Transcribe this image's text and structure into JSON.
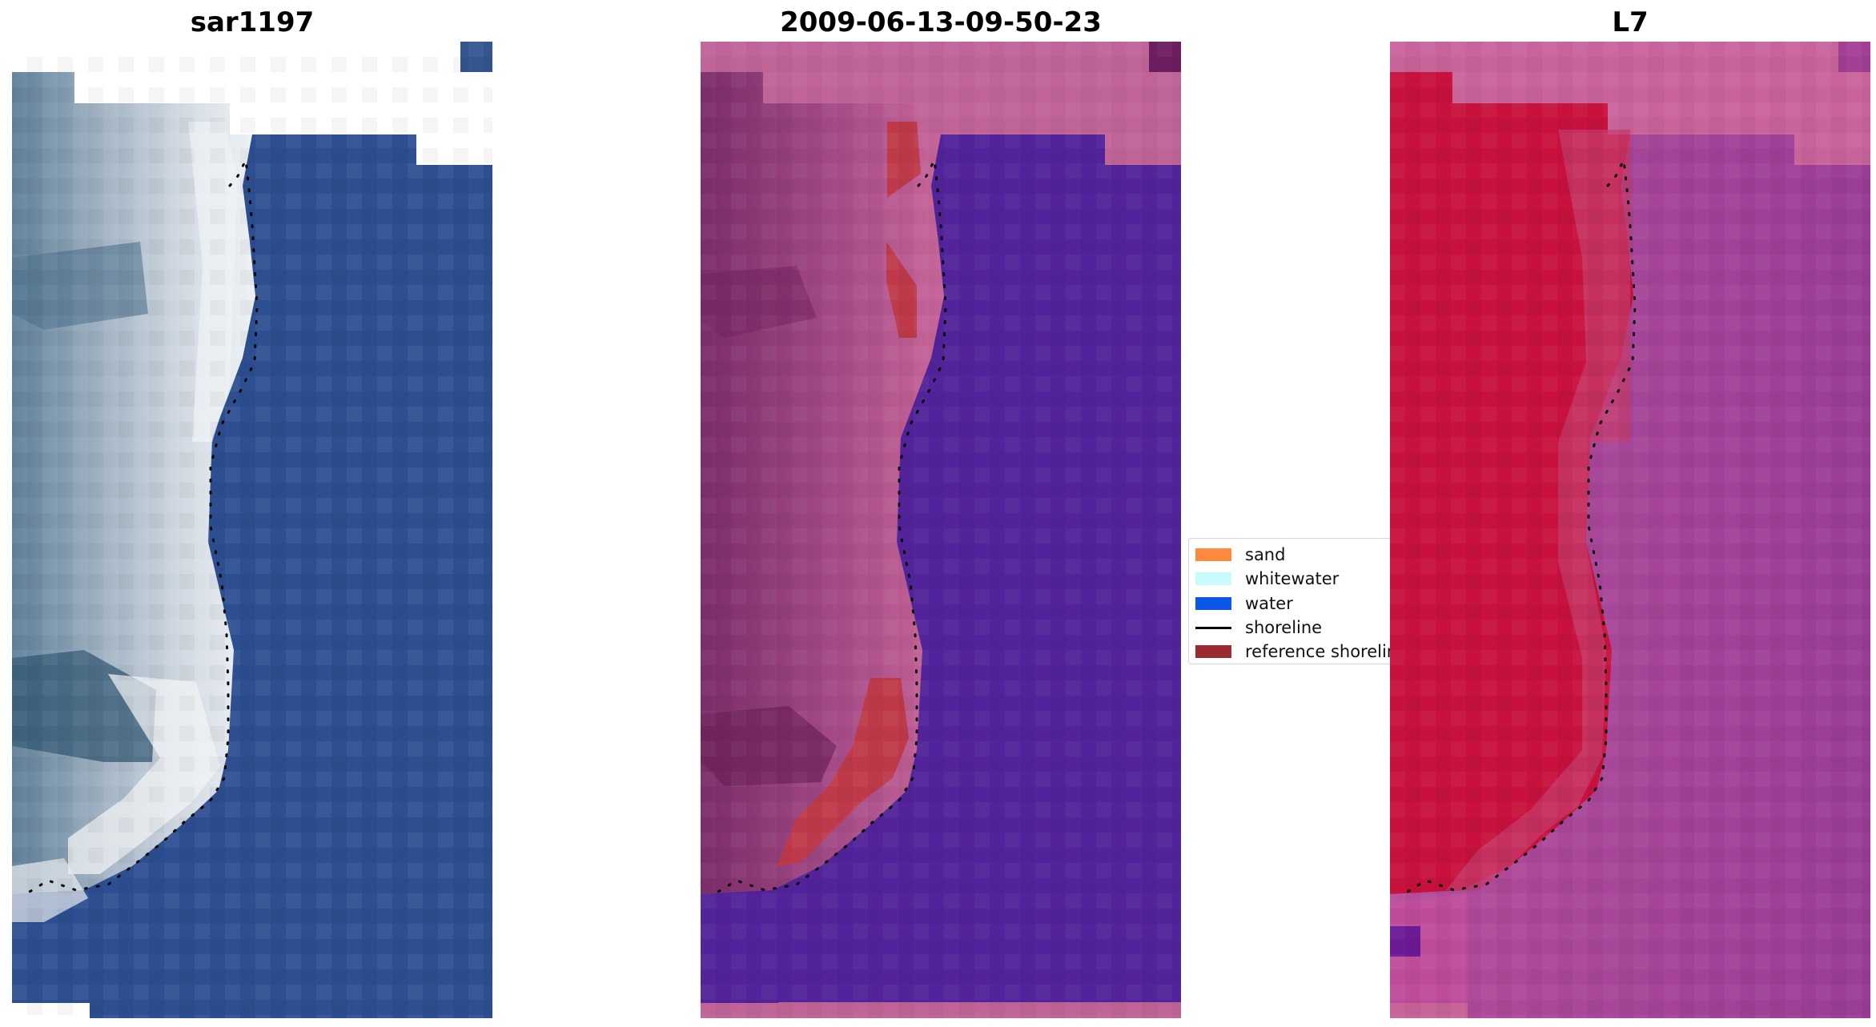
{
  "panels": {
    "left_title": "sar1197",
    "middle_title": "2009-06-13-09-50-23",
    "right_title": "L7"
  },
  "legend": {
    "items": [
      {
        "label": "sand",
        "color": "#ff8a3d",
        "kind": "patch"
      },
      {
        "label": "whitewater",
        "color": "#c8fbfb",
        "kind": "patch"
      },
      {
        "label": "water",
        "color": "#0a57e8",
        "kind": "patch"
      },
      {
        "label": "shoreline",
        "color": "#000000",
        "kind": "line"
      },
      {
        "label": "reference shoreline",
        "color": "#9b2b33",
        "kind": "patch"
      }
    ]
  },
  "colors": {
    "rgb_water": "#2d4f91",
    "rgb_land_light": "#b7c4cf",
    "rgb_land_dark": "#3f647f",
    "class_water": "#52239a",
    "class_land": "#c06498",
    "class_land_dark": "#7b2d69",
    "class_reference": "#be3a4a",
    "mndwi_land": "#c8123d",
    "mndwi_water": "#a33f95",
    "mndwi_background": "#c9649a"
  }
}
